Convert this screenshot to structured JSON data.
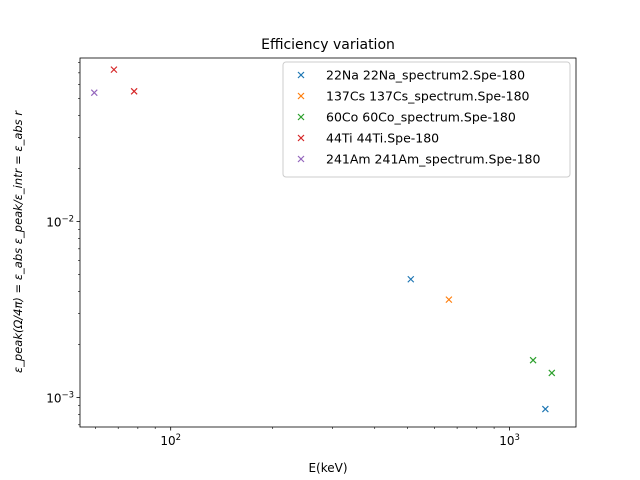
{
  "chart_data": {
    "type": "scatter",
    "title": "Efficiency variation",
    "xlabel": "E(keV)",
    "ylabel": "ε_peak(Ω/4π) = ε_abs ε_peak/ε_intr = ε_abs r",
    "xscale": "log",
    "yscale": "log",
    "xlim": [
      54,
      1570
    ],
    "ylim": [
      0.00068,
      0.085
    ],
    "x_ticks": [
      {
        "value": 100,
        "base": "10",
        "exp": "2"
      },
      {
        "value": 1000,
        "base": "10",
        "exp": "3"
      }
    ],
    "y_ticks": [
      {
        "value": 0.001,
        "base": "10",
        "exp": "−3"
      },
      {
        "value": 0.01,
        "base": "10",
        "exp": "−2"
      }
    ],
    "marker": "x",
    "grid": false,
    "legend_position": "top-right",
    "series": [
      {
        "name": "22Na 22Na_spectrum2.Spe-180",
        "color": "#1f77b4",
        "points": [
          {
            "x": 511,
            "y": 0.0047
          },
          {
            "x": 1275,
            "y": 0.00086
          }
        ]
      },
      {
        "name": "137Cs 137Cs_spectrum.Spe-180",
        "color": "#ff7f0e",
        "points": [
          {
            "x": 662,
            "y": 0.0036
          }
        ]
      },
      {
        "name": "60Co 60Co_spectrum.Spe-180",
        "color": "#2ca02c",
        "points": [
          {
            "x": 1173,
            "y": 0.00163
          },
          {
            "x": 1332,
            "y": 0.00138
          }
        ]
      },
      {
        "name": "44Ti 44Ti.Spe-180",
        "color": "#d62728",
        "points": [
          {
            "x": 68,
            "y": 0.073
          },
          {
            "x": 78,
            "y": 0.055
          }
        ]
      },
      {
        "name": "241Am 241Am_spectrum.Spe-180",
        "color": "#9467bd",
        "points": [
          {
            "x": 59.5,
            "y": 0.054
          }
        ]
      }
    ]
  }
}
